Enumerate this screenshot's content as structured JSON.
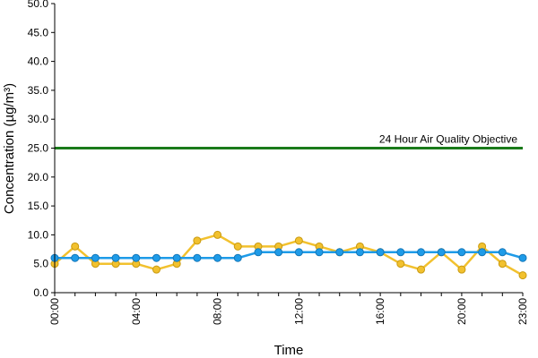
{
  "chart_data": {
    "type": "line",
    "xlabel": "Time",
    "ylabel": "Concentration (µg/m³)",
    "ylim": [
      0,
      50
    ],
    "y_ticks": [
      "0.0",
      "5.0",
      "10.0",
      "15.0",
      "20.0",
      "25.0",
      "30.0",
      "35.0",
      "40.0",
      "45.0",
      "50.0"
    ],
    "x": [
      "00:00",
      "01:00",
      "02:00",
      "03:00",
      "04:00",
      "05:00",
      "06:00",
      "07:00",
      "08:00",
      "09:00",
      "10:00",
      "11:00",
      "12:00",
      "13:00",
      "14:00",
      "15:00",
      "16:00",
      "17:00",
      "18:00",
      "19:00",
      "20:00",
      "21:00",
      "22:00",
      "23:00"
    ],
    "x_tick_labels": [
      "00:00",
      "04:00",
      "08:00",
      "12:00",
      "16:00",
      "20:00",
      "23:00"
    ],
    "grid": false,
    "legend": "none",
    "series": [
      {
        "color": "#f2c12e",
        "values": [
          5,
          8,
          5,
          5,
          5,
          4,
          5,
          9,
          10,
          8,
          8,
          8,
          9,
          8,
          7,
          8,
          7,
          5,
          4,
          7,
          4,
          8,
          5,
          3
        ]
      },
      {
        "color": "#1e9be8",
        "values": [
          6,
          6,
          6,
          6,
          6,
          6,
          6,
          6,
          6,
          6,
          7,
          7,
          7,
          7,
          7,
          7,
          7,
          7,
          7,
          7,
          7,
          7,
          7,
          6
        ]
      }
    ],
    "reference_line": {
      "label": "24 Hour Air Quality Objective",
      "value": 25,
      "color": "#1a7a1a"
    }
  }
}
